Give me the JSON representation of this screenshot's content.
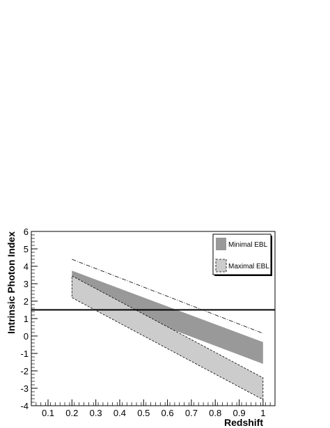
{
  "chart_data": {
    "type": "area",
    "xlabel": "Redshift",
    "ylabel": "Intrinsic Photon Index",
    "xlim": [
      0.03,
      1.05
    ],
    "ylim": [
      -4,
      6
    ],
    "x_ticks": [
      0.1,
      0.2,
      0.3,
      0.4,
      0.5,
      0.6,
      0.7,
      0.8,
      0.9,
      1
    ],
    "x_tick_labels": [
      "0.1",
      "0.2",
      "0.3",
      "0.4",
      "0.5",
      "0.6",
      "0.7",
      "0.8",
      "0.9",
      "1"
    ],
    "y_ticks": [
      -4,
      -3,
      -2,
      -1,
      0,
      1,
      2,
      3,
      4,
      5,
      6
    ],
    "y_tick_labels": [
      "-4",
      "-3",
      "-2",
      "-1",
      "0",
      "1",
      "2",
      "3",
      "4",
      "5",
      "6"
    ],
    "grid": false,
    "legend_position": "top-right",
    "series": [
      {
        "name": "Minimal EBL",
        "kind": "band",
        "fill": "#999999",
        "stroke": "none",
        "x": [
          0.2,
          1.0
        ],
        "upper": [
          3.75,
          -0.35
        ],
        "lower": [
          2.55,
          -1.6
        ]
      },
      {
        "name": "Maximal EBL",
        "kind": "band",
        "fill": "#cccccc",
        "stroke": "dashed",
        "x": [
          0.2,
          1.0
        ],
        "upper": [
          3.45,
          -2.4
        ],
        "lower": [
          2.2,
          -3.65
        ]
      }
    ],
    "lines": [
      {
        "style": "dash-dot",
        "x": [
          0.2,
          1.0
        ],
        "y": [
          4.4,
          0.15
        ]
      },
      {
        "style": "solid-horizontal",
        "y": 1.5
      }
    ],
    "colors": {
      "axis": "#000000",
      "minimal_band": "#999999",
      "maximal_band": "#cccccc"
    }
  }
}
